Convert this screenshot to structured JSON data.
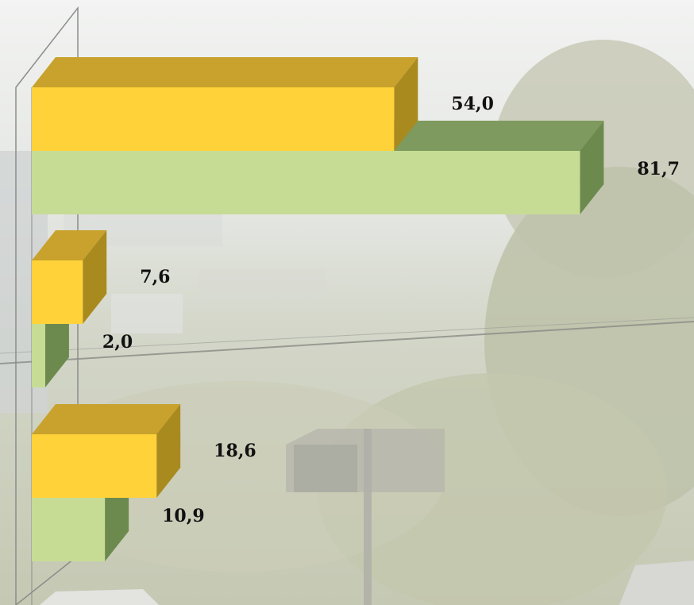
{
  "chart_data": {
    "type": "bar",
    "orientation": "horizontal",
    "style": "3d",
    "title": "",
    "xlabel": "",
    "ylabel": "",
    "categories": [
      "",
      "",
      ""
    ],
    "series": [
      {
        "values": [
          54.0,
          7.6,
          18.6
        ],
        "labels": [
          "54,0",
          "7,6",
          "18,6"
        ]
      },
      {
        "values": [
          81.7,
          2.0,
          10.9
        ],
        "labels": [
          "81,7",
          "2,0",
          "10,9"
        ]
      }
    ],
    "xlim": [
      0,
      100
    ],
    "grid": false,
    "legend": "none"
  },
  "colors": {
    "series1_front": "#ffd23a",
    "series1_top": "#c8a22c",
    "series1_side": "#a98a1e",
    "series2_front": "#c6dc94",
    "series2_top": "#7e9a5e",
    "series2_side": "#6d8a4e",
    "background_sky": "#eef0ef",
    "background_foliage": "#c9ccb8"
  }
}
